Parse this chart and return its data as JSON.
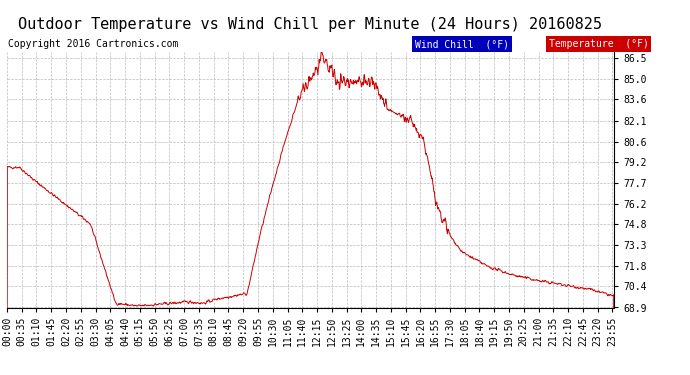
{
  "title": "Outdoor Temperature vs Wind Chill per Minute (24 Hours) 20160825",
  "copyright": "Copyright 2016 Cartronics.com",
  "ylim": [
    68.9,
    86.9
  ],
  "yticks": [
    68.9,
    70.4,
    71.8,
    73.3,
    74.8,
    76.2,
    77.7,
    79.2,
    80.6,
    82.1,
    83.6,
    85.0,
    86.5
  ],
  "ytick_labels": [
    "68.9",
    "70.4",
    "71.8",
    "73.3",
    "74.8",
    "76.2",
    "77.7",
    "79.2",
    "80.6",
    "82.1",
    "83.6",
    "85.0",
    "86.5"
  ],
  "background_color": "#ffffff",
  "grid_color": "#bbbbbb",
  "line_color": "#cc0000",
  "legend_wind_chill_bg": "#0000bb",
  "legend_temp_bg": "#cc0000",
  "legend_wind_chill_text": "Wind Chill  (°F)",
  "legend_temp_text": "Temperature  (°F)",
  "title_fontsize": 11,
  "copyright_fontsize": 7,
  "tick_fontsize": 7,
  "legend_fontsize": 7
}
